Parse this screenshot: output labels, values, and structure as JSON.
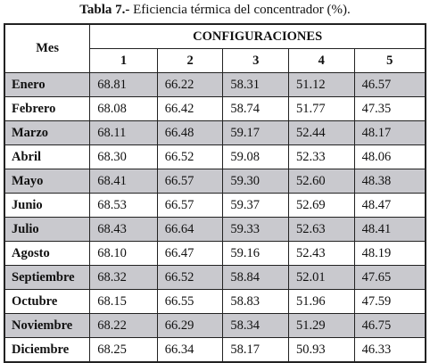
{
  "title": {
    "label": "Tabla 7.-",
    "text": "Eficiencia térmica del concentrador (%)."
  },
  "table": {
    "row_header": "Mes",
    "group_header": "CONFIGURACIONES",
    "columns": [
      "1",
      "2",
      "3",
      "4",
      "5"
    ],
    "rows": [
      [
        "Enero",
        "68.81",
        "66.22",
        "58.31",
        "51.12",
        "46.57"
      ],
      [
        "Febrero",
        "68.08",
        "66.42",
        "58.74",
        "51.77",
        "47.35"
      ],
      [
        "Marzo",
        "68.11",
        "66.48",
        "59.17",
        "52.44",
        "48.17"
      ],
      [
        "Abril",
        "68.30",
        "66.52",
        "59.08",
        "52.33",
        "48.06"
      ],
      [
        "Mayo",
        "68.41",
        "66.57",
        "59.30",
        "52.60",
        "48.38"
      ],
      [
        "Junio",
        "68.53",
        "66.57",
        "59.37",
        "52.69",
        "48.47"
      ],
      [
        "Julio",
        "68.43",
        "66.64",
        "59.33",
        "52.63",
        "48.41"
      ],
      [
        "Agosto",
        "68.10",
        "66.47",
        "59.16",
        "52.43",
        "48.19"
      ],
      [
        "Septiembre",
        "68.32",
        "66.52",
        "58.84",
        "52.01",
        "47.65"
      ],
      [
        "Octubre",
        "68.15",
        "66.55",
        "58.83",
        "51.96",
        "47.59"
      ],
      [
        "Noviembre",
        "68.22",
        "66.29",
        "58.34",
        "51.29",
        "46.75"
      ],
      [
        "Diciembre",
        "68.25",
        "66.34",
        "58.17",
        "50.93",
        "46.33"
      ]
    ]
  }
}
